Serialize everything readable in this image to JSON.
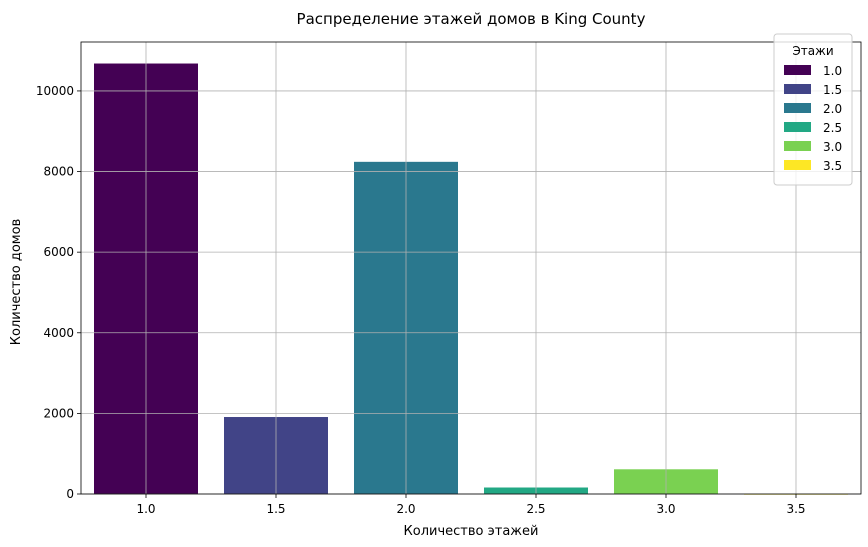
{
  "chart_data": {
    "type": "bar",
    "title": "Распределение этажей домов в King County",
    "xlabel": "Количество этажей",
    "ylabel": "Количество домов",
    "categories": [
      "1.0",
      "1.5",
      "2.0",
      "2.5",
      "3.0",
      "3.5"
    ],
    "values": [
      10680,
      1910,
      8241,
      161,
      613,
      8
    ],
    "colors": [
      "#440154",
      "#414487",
      "#2a788e",
      "#22a884",
      "#7ad151",
      "#fde725"
    ],
    "yticks": [
      "0",
      "2000",
      "4000",
      "6000",
      "8000",
      "10000"
    ],
    "ylim": [
      0,
      11214
    ],
    "grid": true,
    "legend": {
      "title": "Этажи",
      "position": "top-right",
      "entries": [
        "1.0",
        "1.5",
        "2.0",
        "2.5",
        "3.0",
        "3.5"
      ]
    }
  }
}
